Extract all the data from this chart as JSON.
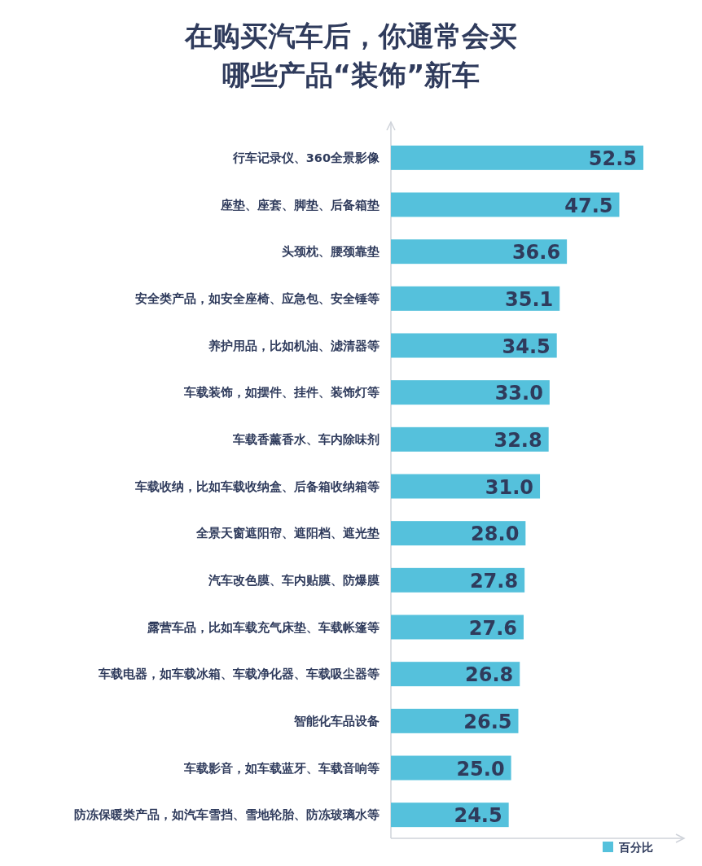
{
  "chart_data": {
    "type": "bar",
    "orientation": "horizontal",
    "title": "在购买汽车后，你通常会买哪些产品“装饰”新车",
    "categories": [
      "行车记录仪、360全景影像",
      "座垫、座套、脚垫、后备箱垫",
      "头颈枕、腰颈靠垫",
      "安全类产品，如安全座椅、应急包、安全锤等",
      "养护用品，比如机油、滤清器等",
      "车载装饰，如摆件、挂件、装饰灯等",
      "车载香薰香水、车内除味剂",
      "车载收纳，比如车载收纳盒、后备箱收纳箱等",
      "全景天窗遮阳帘、遮阳档、遮光垫",
      "汽车改色膜、车内贴膜、防爆膜",
      "露营车品，比如车载充气床垫、车载帐篷等",
      "车载电器，如车载冰箱、车载净化器、车载吸尘器等",
      "智能化车品设备",
      "车载影音，如车载蓝牙、车载音响等",
      "防冻保暖类产品，如汽车雪挡、雪地轮胎、防冻玻璃水等"
    ],
    "series": [
      {
        "name": "百分比",
        "color": "#55c1dc",
        "values": [
          52.5,
          47.5,
          36.6,
          35.1,
          34.5,
          33.0,
          32.8,
          31.0,
          28.0,
          27.8,
          27.6,
          26.8,
          26.5,
          25.0,
          24.5
        ],
        "value_labels": [
          "52.5",
          "47.5",
          "36.6",
          "35.1",
          "34.5",
          "33.0",
          "32.8",
          "31.0",
          "28.0",
          "27.8",
          "27.6",
          "26.8",
          "26.5",
          "25.0",
          "24.5"
        ]
      }
    ],
    "legend": "bottom right"
  }
}
